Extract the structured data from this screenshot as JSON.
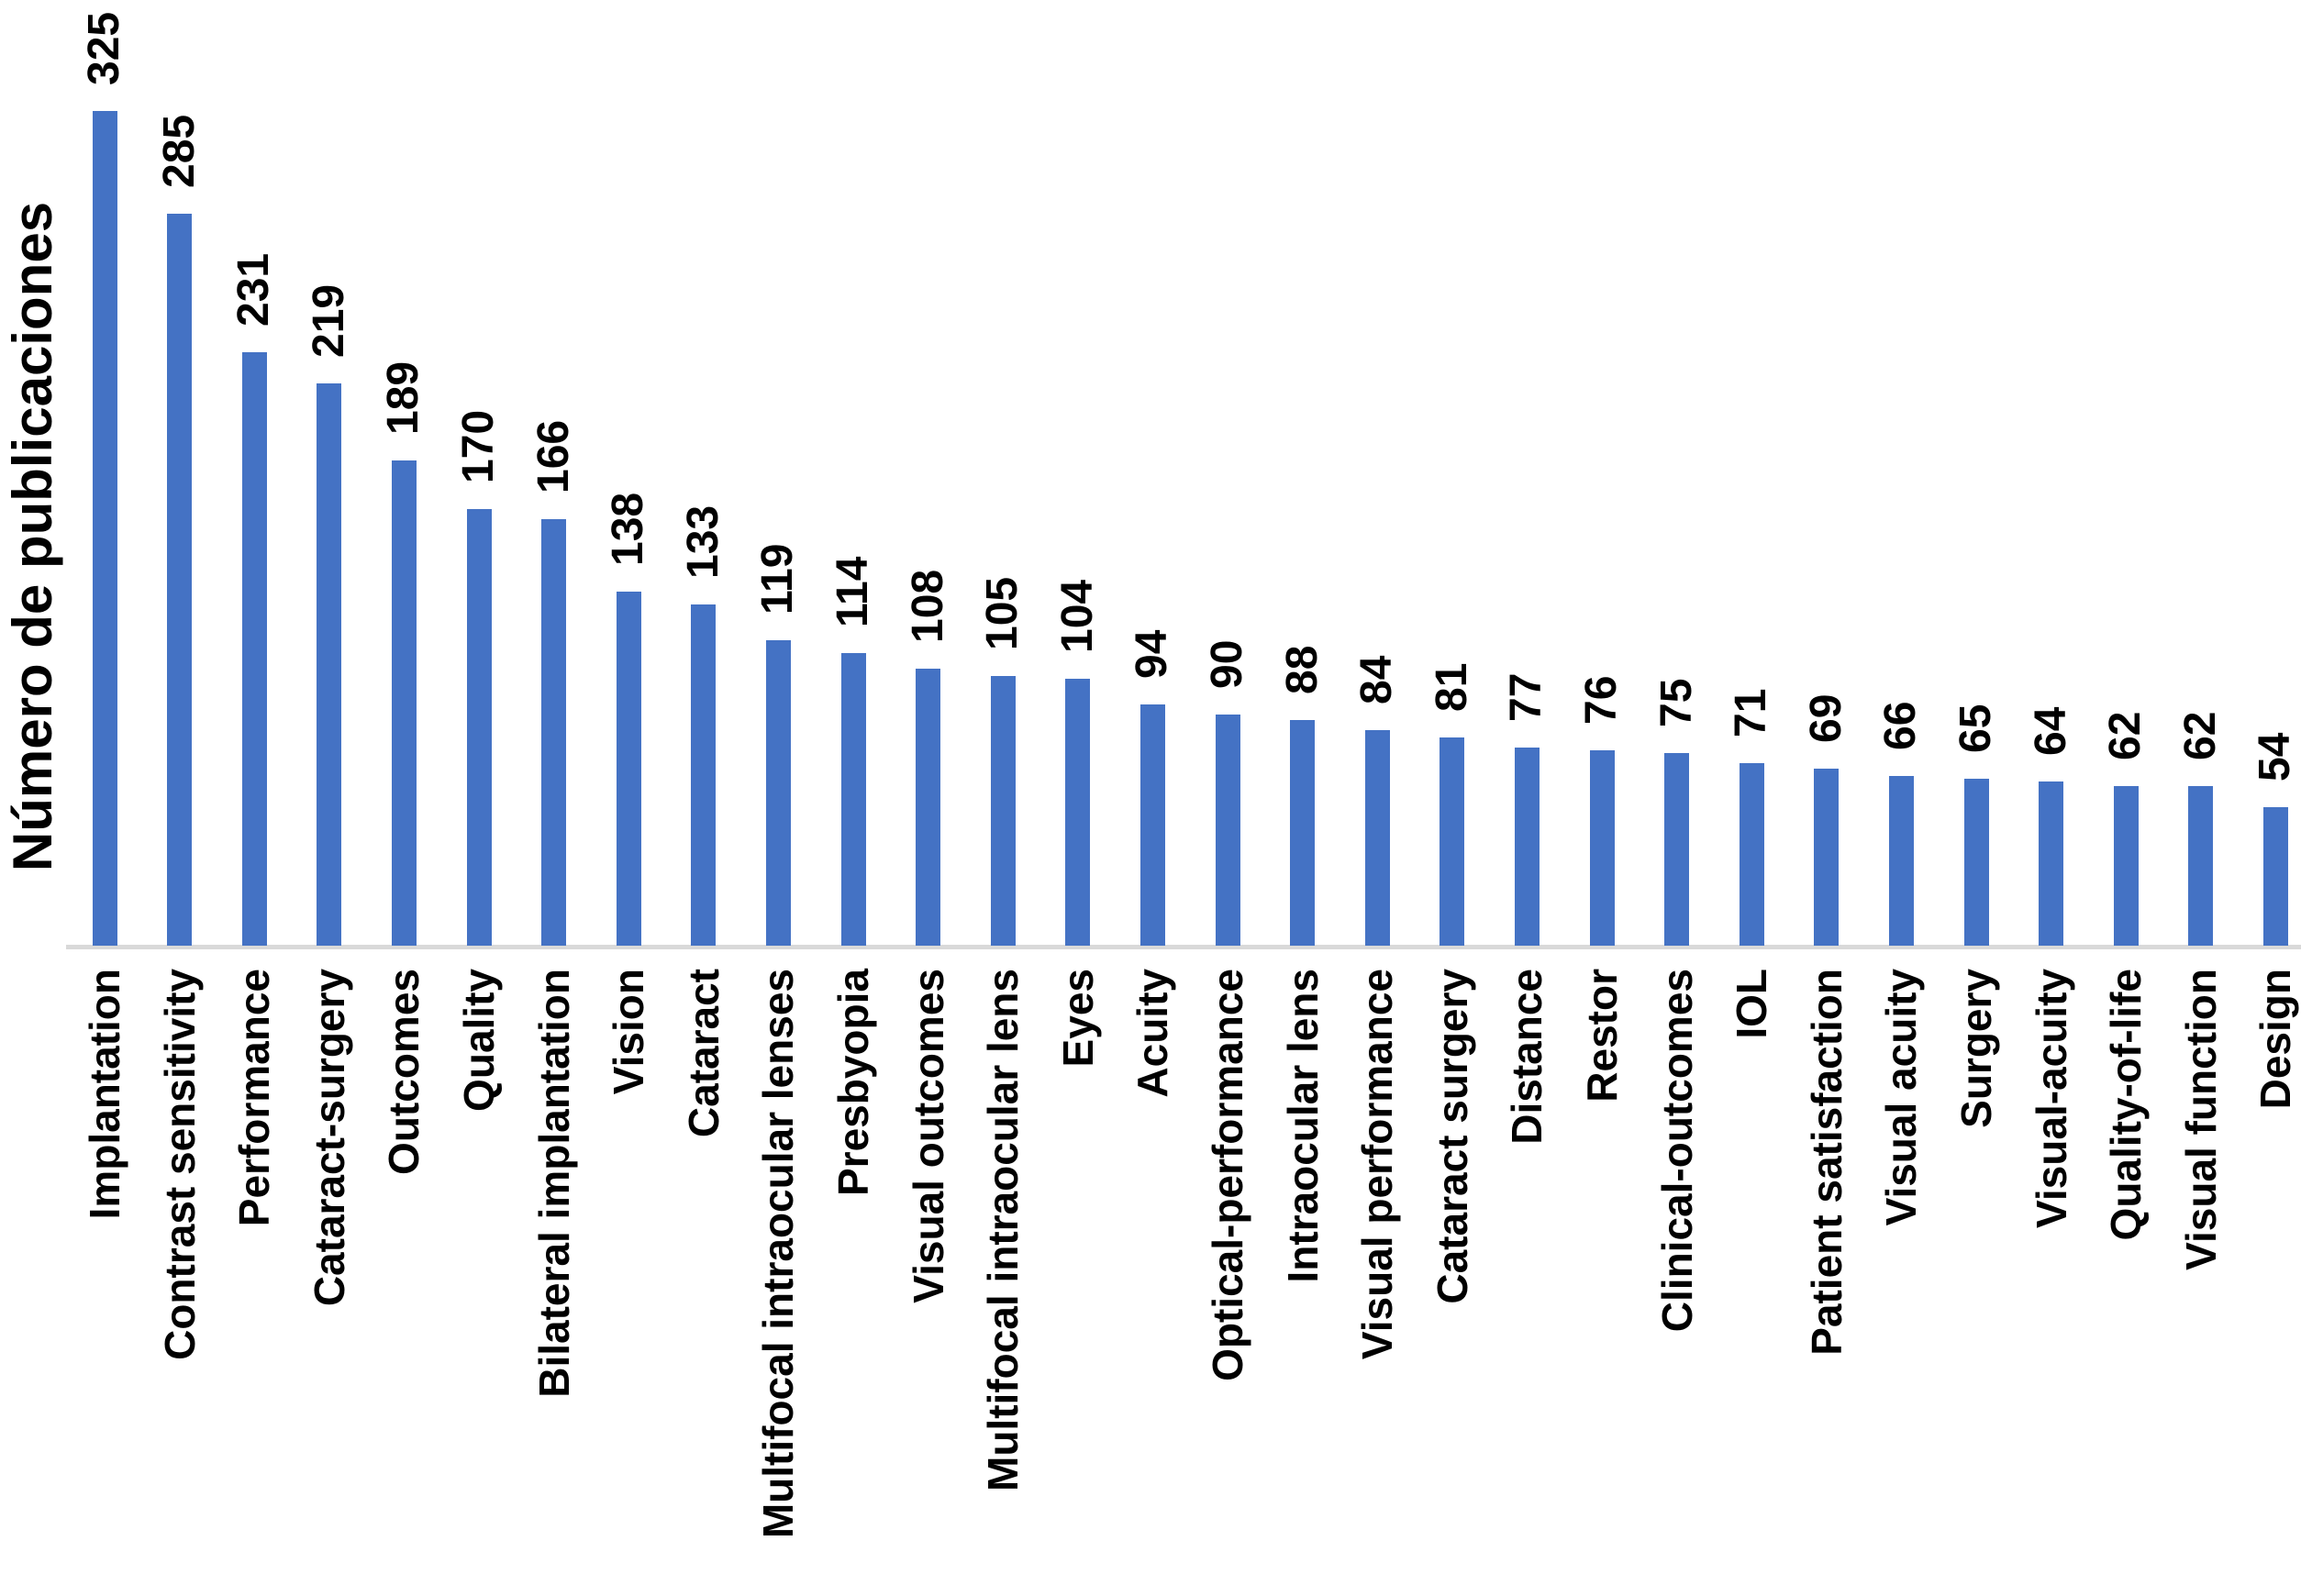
{
  "chart_data": {
    "type": "bar",
    "title": "",
    "ylabel": "Número de publicaciones",
    "xlabel": "",
    "categories": [
      "Implantation",
      "Contrast sensitivity",
      "Performance",
      "Cataract-surgery",
      "Outcomes",
      "Quality",
      "Bilateral implantation",
      "Vision",
      "Cataract",
      "Multifocal intraocular lenses",
      "Presbyopia",
      "Visual outcomes",
      "Multifocal intraocular lens",
      "Eyes",
      "Acuity",
      "Optical-performance",
      "Intraocular lens",
      "Visual performance",
      "Cataract surgery",
      "Distance",
      "Restor",
      "Clinical-outcomes",
      "IOL",
      "Patient satisfaction",
      "Visual acuity",
      "Surgery",
      "Visual-acuity",
      "Quality-of-life",
      "Visual function",
      "Design"
    ],
    "values": [
      325,
      285,
      231,
      219,
      189,
      170,
      166,
      138,
      133,
      119,
      114,
      108,
      105,
      104,
      94,
      90,
      88,
      84,
      81,
      77,
      76,
      75,
      71,
      69,
      66,
      65,
      64,
      62,
      62,
      54
    ],
    "bar_color": "#4472C4",
    "axis_line_color": "#D9D9D9",
    "label_color": "#000000",
    "background_color": "#FFFFFF",
    "value_label_rotation_deg": 90,
    "category_label_rotation_deg": 90,
    "grid": false,
    "legend": false,
    "ylim": [
      0,
      325
    ]
  }
}
